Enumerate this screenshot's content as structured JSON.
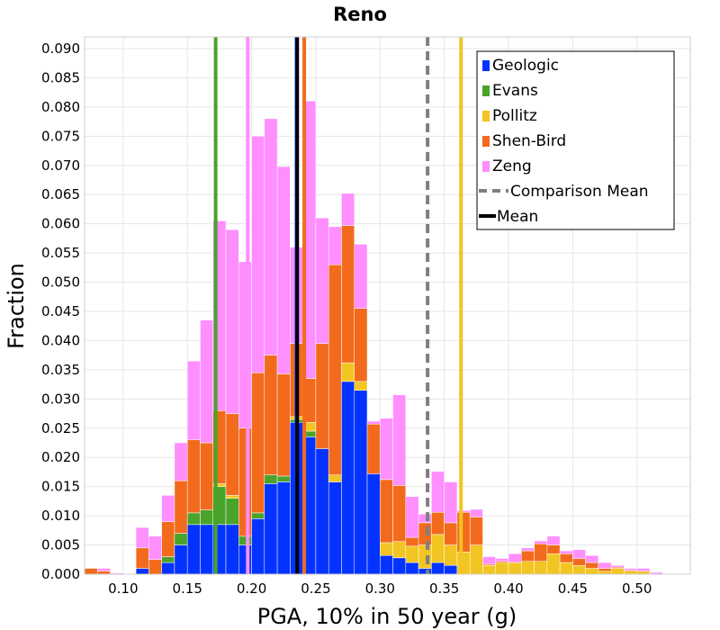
{
  "chart_data": {
    "type": "bar",
    "stacked": true,
    "title": "Reno",
    "xlabel": "PGA, 10% in 50 year (g)",
    "ylabel": "Fraction",
    "xlim": [
      0.07,
      0.5415
    ],
    "ylim": [
      0,
      0.092
    ],
    "bin_width": 0.01,
    "x_ticks": [
      "0.10",
      "0.15",
      "0.20",
      "0.25",
      "0.30",
      "0.35",
      "0.40",
      "0.45",
      "0.50"
    ],
    "y_ticks": [
      "0.000",
      "0.005",
      "0.010",
      "0.015",
      "0.020",
      "0.025",
      "0.030",
      "0.035",
      "0.040",
      "0.045",
      "0.050",
      "0.055",
      "0.060",
      "0.065",
      "0.070",
      "0.075",
      "0.080",
      "0.085",
      "0.090"
    ],
    "grid": true,
    "legend_position": "top-right",
    "bin_starts": [
      0.07,
      0.08,
      0.09,
      0.1,
      0.11,
      0.12,
      0.13,
      0.14,
      0.15,
      0.16,
      0.17,
      0.18,
      0.19,
      0.2,
      0.21,
      0.22,
      0.23,
      0.24,
      0.25,
      0.26,
      0.27,
      0.28,
      0.29,
      0.3,
      0.31,
      0.32,
      0.33,
      0.34,
      0.35,
      0.36,
      0.37,
      0.38,
      0.39,
      0.4,
      0.41,
      0.42,
      0.43,
      0.44,
      0.45,
      0.46,
      0.47,
      0.48,
      0.49,
      0.5,
      0.51,
      0.52,
      0.53
    ],
    "series": [
      {
        "name": "Geologic",
        "color": "#0433ff",
        "values": [
          0,
          0,
          0,
          0,
          0.001,
          0,
          0.002,
          0.005,
          0.0085,
          0.0085,
          0.0085,
          0.0085,
          0.005,
          0.0095,
          0.0155,
          0.0158,
          0.026,
          0.0235,
          0.0215,
          0.0158,
          0.033,
          0.0315,
          0.0172,
          0.0032,
          0.0028,
          0.002,
          0.001,
          0.002,
          0.0015,
          0,
          0,
          0,
          0,
          0,
          0,
          0,
          0,
          0,
          0,
          0,
          0,
          0,
          0,
          0,
          0,
          0,
          0
        ]
      },
      {
        "name": "Evans",
        "color": "#4aa32b",
        "values": [
          0,
          0,
          0,
          0,
          0,
          0,
          0.001,
          0.002,
          0.002,
          0.0025,
          0.0065,
          0.0045,
          0.0015,
          0.001,
          0.0015,
          0.001,
          0.0005,
          0.001,
          0,
          0,
          0,
          0,
          0,
          0,
          0,
          0,
          0,
          0,
          0,
          0,
          0,
          0,
          0,
          0,
          0,
          0,
          0,
          0,
          0,
          0,
          0,
          0,
          0,
          0,
          0,
          0,
          0
        ]
      },
      {
        "name": "Pollitz",
        "color": "#f2c522",
        "values": [
          0,
          0,
          0,
          0,
          0,
          0,
          0,
          0,
          0,
          0,
          0.0005,
          0.0005,
          0,
          0,
          0,
          0,
          0.0005,
          0.0015,
          0,
          0.0012,
          0.0032,
          0.0015,
          0,
          0.0022,
          0.0028,
          0.0028,
          0.004,
          0.0048,
          0.0035,
          0.0038,
          0.005,
          0.0015,
          0.002,
          0.002,
          0.0022,
          0.0022,
          0.0035,
          0.002,
          0.0015,
          0.001,
          0.0005,
          0.001,
          0.0005,
          0.0005,
          0,
          0,
          0
        ]
      },
      {
        "name": "Shen-Bird",
        "color": "#f26b1d",
        "values": [
          0.001,
          0.0005,
          0,
          0,
          0.0035,
          0.0025,
          0.006,
          0.009,
          0.0125,
          0.0115,
          0.0125,
          0.014,
          0.0185,
          0.024,
          0.0205,
          0.0175,
          0.0125,
          0.0075,
          0.018,
          0.036,
          0.0235,
          0.0125,
          0.0085,
          0.0108,
          0.0096,
          0.0015,
          0.0038,
          0.0038,
          0.0038,
          0.0068,
          0.0048,
          0.0002,
          0.0002,
          0.0,
          0.0018,
          0.003,
          0.0015,
          0.0015,
          0.0012,
          0.001,
          0.0005,
          0.0002,
          0.0002,
          0.0,
          0.0,
          0.0,
          0.0
        ]
      },
      {
        "name": "Zeng",
        "color": "#ff8eff",
        "values": [
          0,
          0.0005,
          0.0002,
          0.0,
          0.0035,
          0.004,
          0.0045,
          0.0065,
          0.0135,
          0.021,
          0.0325,
          0.0315,
          0.0285,
          0.0405,
          0.0405,
          0.0355,
          0.0165,
          0.0475,
          0.0215,
          0.0065,
          0.0055,
          0.011,
          0.0005,
          0.0105,
          0.0155,
          0.007,
          0.0015,
          0.007,
          0.007,
          0.0003,
          0.0013,
          0.0013,
          0.0005,
          0.0015,
          0.0005,
          0.0005,
          0.0015,
          0.0005,
          0.0015,
          0.0012,
          0.001,
          0.0003,
          0.0003,
          0.0005,
          0.0003,
          0.0,
          0.0
        ]
      }
    ],
    "extra_bars": [
      {
        "x": 0.46,
        "values": {
          "Pollitz": 0.001
        }
      },
      {
        "x": 0.47,
        "values": {
          "Pollitz": 0.0012
        }
      },
      {
        "x": 0.48,
        "values": {
          "Pollitz": 0.0012
        }
      },
      {
        "x": 0.49,
        "values": {
          "Pollitz": 0.0007
        }
      },
      {
        "x": 0.5,
        "values": {
          "Pollitz": 0.0002
        }
      },
      {
        "x": 0.51,
        "values": {
          "Pollitz": 0.001
        }
      },
      {
        "x": 0.52,
        "values": {
          "Pollitz": 0.0005
        }
      },
      {
        "x": 0.53,
        "values": {
          "Pollitz": 0.0012
        }
      }
    ],
    "vertical_lines": [
      {
        "legend": "Geologic",
        "x": 0.235,
        "color": "#0433ff",
        "style": "solid"
      },
      {
        "legend": "Evans",
        "x": 0.172,
        "color": "#4aa32b",
        "style": "solid"
      },
      {
        "legend": "Pollitz",
        "x": 0.363,
        "color": "#f2c522",
        "style": "solid"
      },
      {
        "legend": "Shen-Bird",
        "x": 0.241,
        "color": "#f26b1d",
        "style": "solid"
      },
      {
        "legend": "Zeng",
        "x": 0.197,
        "color": "#ff8eff",
        "style": "solid"
      },
      {
        "legend": "Comparison Mean",
        "x": 0.337,
        "color": "#7f7f7f",
        "style": "dashed"
      },
      {
        "legend": "Mean",
        "x": 0.2355,
        "color": "#000000",
        "style": "solid"
      }
    ],
    "legend": [
      {
        "label": "Geologic",
        "color": "#0433ff",
        "kind": "box"
      },
      {
        "label": "Evans",
        "color": "#4aa32b",
        "kind": "box"
      },
      {
        "label": "Pollitz",
        "color": "#f2c522",
        "kind": "box"
      },
      {
        "label": "Shen-Bird",
        "color": "#f26b1d",
        "kind": "box"
      },
      {
        "label": "Zeng",
        "color": "#ff8eff",
        "kind": "box"
      },
      {
        "label": "Comparison Mean",
        "color": "#7f7f7f",
        "kind": "dashed-line"
      },
      {
        "label": "Mean",
        "color": "#000000",
        "kind": "line"
      }
    ]
  }
}
